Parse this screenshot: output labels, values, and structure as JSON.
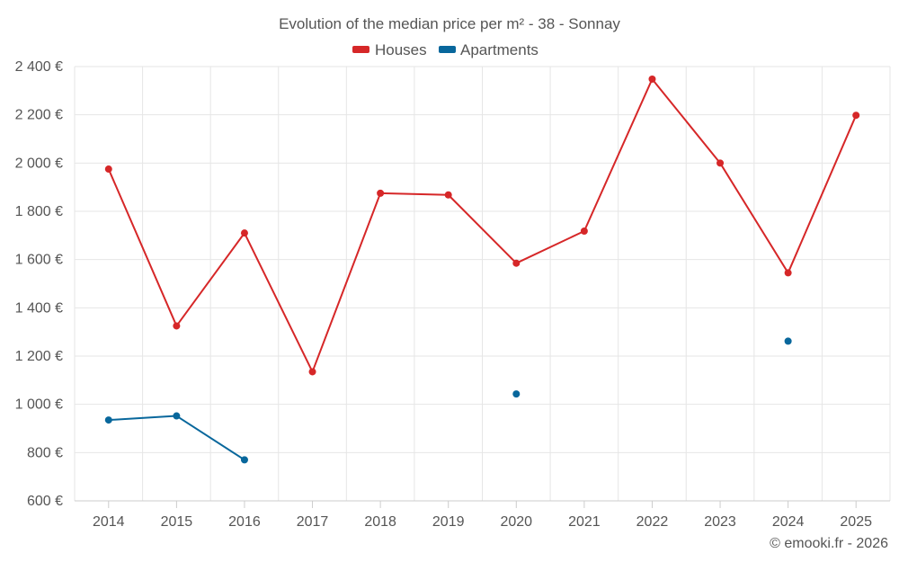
{
  "chart_data": {
    "type": "line",
    "title": "Evolution of the median price per m² - 38 - Sonnay",
    "categories": [
      "2014",
      "2015",
      "2016",
      "2017",
      "2018",
      "2019",
      "2020",
      "2021",
      "2022",
      "2023",
      "2024",
      "2025"
    ],
    "series": [
      {
        "name": "Houses",
        "color": "#d62728",
        "values": [
          1975,
          1325,
          1710,
          1135,
          1875,
          1868,
          1585,
          1718,
          2348,
          2000,
          1545,
          2198
        ]
      },
      {
        "name": "Apartments",
        "color": "#08679c",
        "values": [
          935,
          952,
          770,
          null,
          null,
          null,
          1043,
          null,
          null,
          null,
          1262,
          null
        ]
      }
    ],
    "ylim": [
      600,
      2400
    ],
    "yticks": [
      600,
      800,
      1000,
      1200,
      1400,
      1600,
      1800,
      2000,
      2200,
      2400
    ],
    "ytick_labels": [
      "600 €",
      "800 €",
      "1 000 €",
      "1 200 €",
      "1 400 €",
      "1 600 €",
      "1 800 €",
      "2 000 €",
      "2 200 €",
      "2 400 €"
    ],
    "xlabel": "",
    "ylabel": "",
    "grid": true,
    "legend_position": "top-center",
    "credit": "© emooki.fr - 2026"
  }
}
